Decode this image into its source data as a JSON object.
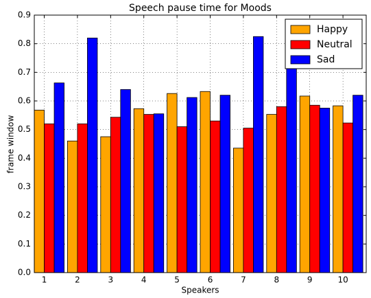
{
  "chart_data": {
    "type": "bar",
    "title": "Speech pause time for Moods",
    "xlabel": "Speakers",
    "ylabel": "frame window",
    "categories": [
      "1",
      "2",
      "3",
      "4",
      "5",
      "6",
      "7",
      "8",
      "9",
      "10"
    ],
    "series": [
      {
        "name": "Happy",
        "color": "#ffa500",
        "values": [
          0.568,
          0.46,
          0.475,
          0.573,
          0.626,
          0.633,
          0.435,
          0.553,
          0.617,
          0.583
        ]
      },
      {
        "name": "Neutral",
        "color": "#ff0000",
        "values": [
          0.52,
          0.52,
          0.543,
          0.553,
          0.51,
          0.53,
          0.505,
          0.58,
          0.585,
          0.523
        ]
      },
      {
        "name": "Sad",
        "color": "#0000ff",
        "values": [
          0.663,
          0.82,
          0.64,
          0.555,
          0.612,
          0.62,
          0.825,
          0.76,
          0.575,
          0.62
        ]
      }
    ],
    "ylim": [
      0,
      0.9
    ],
    "yticks": [
      {
        "value": 0,
        "label": "0.0"
      },
      0.1,
      0.2,
      0.3,
      0.4,
      0.5,
      0.6,
      0.7,
      0.8,
      0.9
    ],
    "grid": true,
    "legend": "upper right"
  }
}
